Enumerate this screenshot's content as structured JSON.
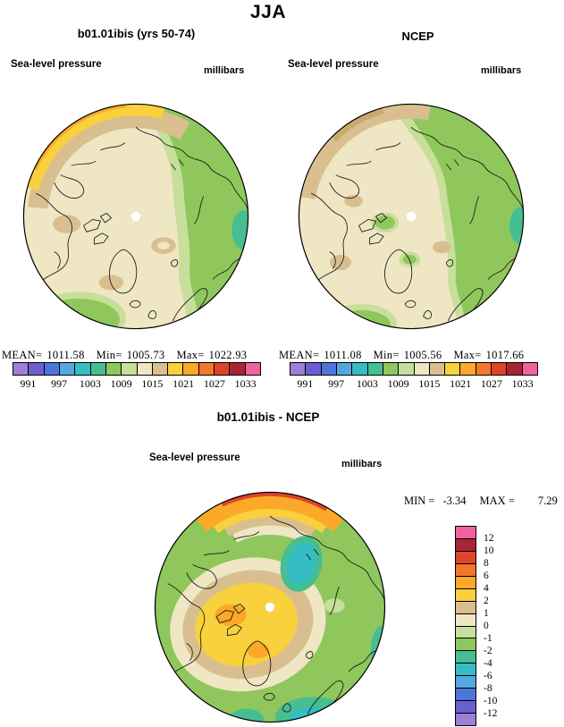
{
  "figure": {
    "title": "JJA"
  },
  "panels": {
    "model": {
      "title": "b01.01ibis (yrs 50-74)",
      "field": "Sea-level pressure",
      "units": "millibars",
      "stats": {
        "mean_label": "MEAN=",
        "mean": "1011.58",
        "min_label": "Min=",
        "min": "1005.73",
        "max_label": "Max=",
        "max": "1022.93"
      }
    },
    "ncep": {
      "title": "NCEP",
      "field": "Sea-level pressure",
      "units": "millibars",
      "stats": {
        "mean_label": "MEAN=",
        "mean": "1011.08",
        "min_label": "Min=",
        "min": "1005.56",
        "max_label": "Max=",
        "max": "1017.66"
      }
    },
    "diff": {
      "title": "b01.01ibis - NCEP",
      "field": "Sea-level pressure",
      "units": "millibars",
      "stats": {
        "min_label": "MIN =",
        "min": "-3.34",
        "max_label": "MAX =",
        "max": "7.29"
      }
    }
  },
  "pressure_colorbar": {
    "ticks": [
      "991",
      "997",
      "1003",
      "1009",
      "1015",
      "1021",
      "1027",
      "1033"
    ],
    "colors": [
      "#9E7FD4",
      "#6A5FD0",
      "#4D76DB",
      "#55A7E0",
      "#35BDC4",
      "#46BE92",
      "#8FC75C",
      "#C6DF9A",
      "#EFE6C4",
      "#D9BF8F",
      "#F8D13C",
      "#FCA828",
      "#F2772C",
      "#E04428",
      "#A82633",
      "#F0629E"
    ]
  },
  "diff_colorbar": {
    "ticks": [
      "12",
      "10",
      "8",
      "6",
      "4",
      "2",
      "1",
      "0",
      "-1",
      "-2",
      "-4",
      "-6",
      "-8",
      "-10",
      "-12"
    ],
    "colors": [
      "#F0629E",
      "#A82633",
      "#E04428",
      "#F2772C",
      "#FCA828",
      "#F8D13C",
      "#D9BF8F",
      "#EFE6C4",
      "#C6DF9A",
      "#8FC75C",
      "#46BE92",
      "#35BDC4",
      "#55A7E0",
      "#4D76DB",
      "#6A5FD0",
      "#9E7FD4"
    ]
  },
  "chart_data": [
    {
      "type": "heatmap",
      "title": "b01.01ibis (yrs 50-74)",
      "season": "JJA",
      "variable": "Sea-level pressure",
      "units": "millibars",
      "projection": "north polar stereographic",
      "stats": {
        "mean": 1011.58,
        "min": 1005.73,
        "max": 1022.93
      },
      "levels": [
        991,
        997,
        1003,
        1009,
        1015,
        1021,
        1027,
        1033
      ],
      "legend_position": "bottom"
    },
    {
      "type": "heatmap",
      "title": "NCEP",
      "season": "JJA",
      "variable": "Sea-level pressure",
      "units": "millibars",
      "projection": "north polar stereographic",
      "stats": {
        "mean": 1011.08,
        "min": 1005.56,
        "max": 1017.66
      },
      "levels": [
        991,
        997,
        1003,
        1009,
        1015,
        1021,
        1027,
        1033
      ],
      "legend_position": "bottom"
    },
    {
      "type": "heatmap",
      "title": "b01.01ibis - NCEP",
      "season": "JJA",
      "variable": "Sea-level pressure difference",
      "units": "millibars",
      "projection": "north polar stereographic",
      "stats": {
        "min": -3.34,
        "max": 7.29
      },
      "levels": [
        -12,
        -10,
        -8,
        -6,
        -4,
        -2,
        -1,
        0,
        1,
        2,
        4,
        6,
        8,
        10,
        12
      ],
      "legend_position": "right"
    }
  ]
}
